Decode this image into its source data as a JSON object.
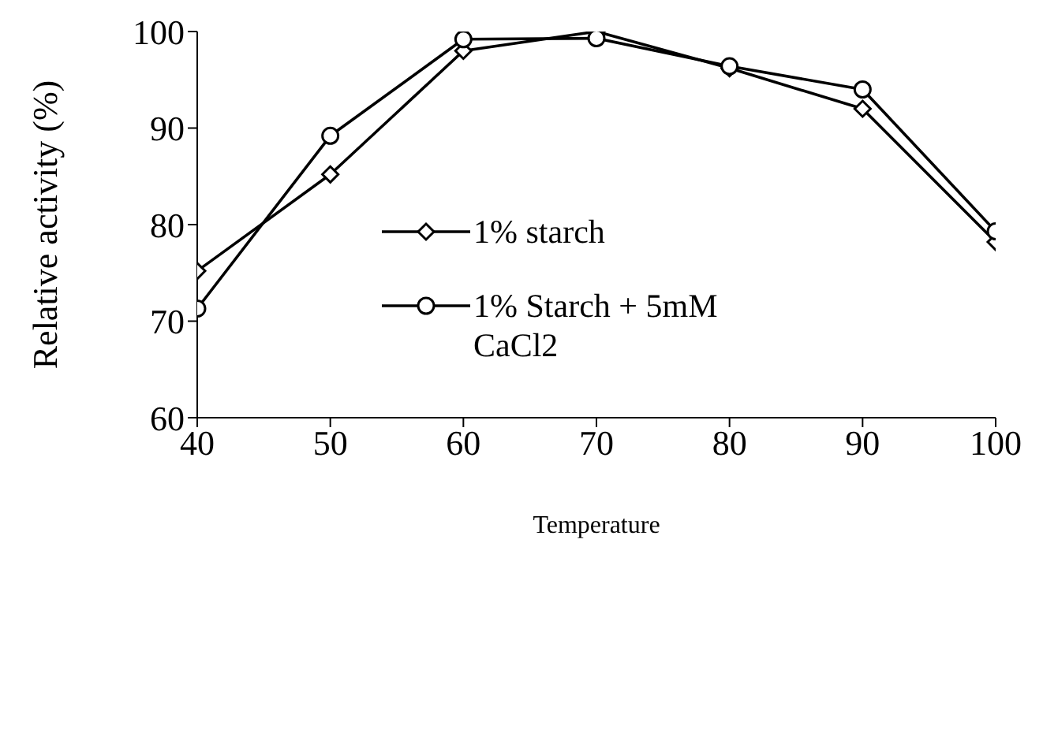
{
  "chart_data": {
    "type": "line",
    "xlabel": "Temperature",
    "ylabel": "Relative activity (%)",
    "x": [
      40,
      50,
      60,
      70,
      80,
      90,
      100
    ],
    "series": [
      {
        "name": "1% starch",
        "color": "#000000",
        "marker": "diamond",
        "values": [
          75.2,
          85.2,
          98,
          100,
          96.2,
          92,
          78.2
        ]
      },
      {
        "name": "1% Starch + 5mM CaCl2",
        "color": "#000000",
        "marker": "circle",
        "values": [
          71.3,
          89.2,
          99.2,
          99.3,
          96.4,
          94,
          79.3
        ]
      }
    ],
    "xlim": [
      40,
      100
    ],
    "xticks": [
      40,
      50,
      60,
      70,
      80,
      90,
      100
    ],
    "ylim": [
      60,
      100
    ],
    "yticks": [
      60,
      70,
      80,
      90,
      100
    ],
    "grid": false,
    "legend": "center",
    "line_style": "solid"
  }
}
